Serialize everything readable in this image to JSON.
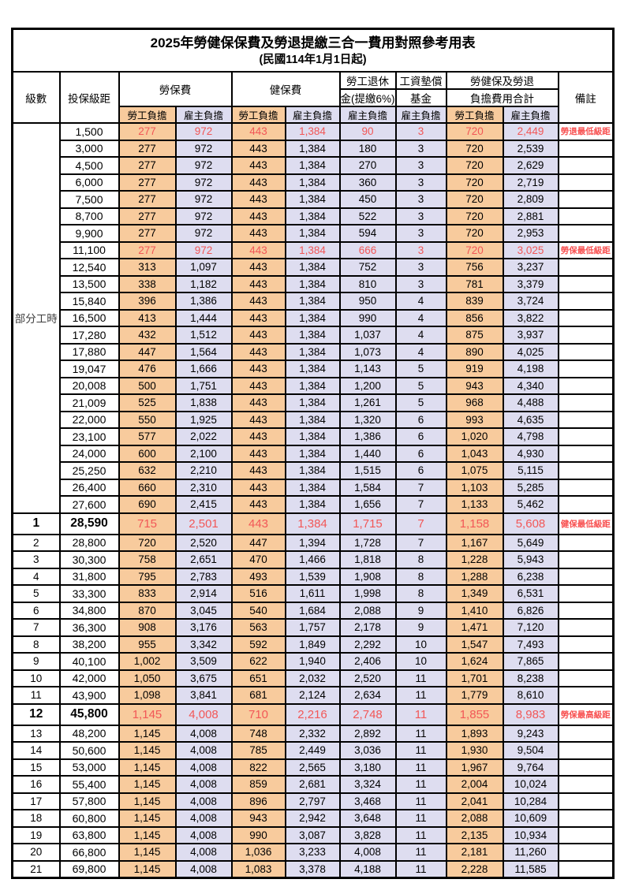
{
  "title": "2025年勞健保保費及勞退提繳三合一費用對照參考用表",
  "subtitle": "(民國114年1月1日起)",
  "colors": {
    "worker_share_bg": "#F8CB9D",
    "employer_share_bg": "#DEDDF0",
    "highlight_red": "#F25757",
    "border": "#000000"
  },
  "header": {
    "level": "級數",
    "salary_bracket": "投保級距",
    "labor_insurance": "勞保費",
    "health_insurance": "健保費",
    "pension_line1": "勞工退休",
    "pension_line2": "金(提繳6%)",
    "wage_fund_line1": "工資墊償",
    "wage_fund_line2": "基金",
    "total_line1": "勞健保及勞退",
    "total_line2": "負擔費用合計",
    "worker_share": "勞工負擔",
    "employer_share": "雇主負擔",
    "remarks": "備註"
  },
  "part_time_label": "部分工時",
  "part_time_rowspan": 23,
  "columns_legend": {
    "lv": "級數",
    "sal": "投保級距",
    "li_w": "勞保費-勞工負擔",
    "li_e": "勞保費-雇主負擔",
    "hi_w": "健保費-勞工負擔",
    "hi_e": "健保費-雇主負擔",
    "pen_e": "勞工退休金(提繳6%)-雇主負擔",
    "wf_e": "工資墊償基金-雇主負擔",
    "tot_w": "合計-勞工負擔",
    "tot_e": "合計-雇主負擔",
    "rem": "備註",
    "style": "normal | red | milestone"
  },
  "rows": [
    {
      "lv": "",
      "sal": "1,500",
      "li_w": "277",
      "li_e": "972",
      "hi_w": "443",
      "hi_e": "1,384",
      "pen_e": "90",
      "wf_e": "3",
      "tot_w": "720",
      "tot_e": "2,449",
      "rem": "勞退最低級距",
      "style": "red"
    },
    {
      "lv": "",
      "sal": "3,000",
      "li_w": "277",
      "li_e": "972",
      "hi_w": "443",
      "hi_e": "1,384",
      "pen_e": "180",
      "wf_e": "3",
      "tot_w": "720",
      "tot_e": "2,539",
      "rem": "",
      "style": ""
    },
    {
      "lv": "",
      "sal": "4,500",
      "li_w": "277",
      "li_e": "972",
      "hi_w": "443",
      "hi_e": "1,384",
      "pen_e": "270",
      "wf_e": "3",
      "tot_w": "720",
      "tot_e": "2,629",
      "rem": "",
      "style": ""
    },
    {
      "lv": "",
      "sal": "6,000",
      "li_w": "277",
      "li_e": "972",
      "hi_w": "443",
      "hi_e": "1,384",
      "pen_e": "360",
      "wf_e": "3",
      "tot_w": "720",
      "tot_e": "2,719",
      "rem": "",
      "style": ""
    },
    {
      "lv": "",
      "sal": "7,500",
      "li_w": "277",
      "li_e": "972",
      "hi_w": "443",
      "hi_e": "1,384",
      "pen_e": "450",
      "wf_e": "3",
      "tot_w": "720",
      "tot_e": "2,809",
      "rem": "",
      "style": ""
    },
    {
      "lv": "",
      "sal": "8,700",
      "li_w": "277",
      "li_e": "972",
      "hi_w": "443",
      "hi_e": "1,384",
      "pen_e": "522",
      "wf_e": "3",
      "tot_w": "720",
      "tot_e": "2,881",
      "rem": "",
      "style": ""
    },
    {
      "lv": "",
      "sal": "9,900",
      "li_w": "277",
      "li_e": "972",
      "hi_w": "443",
      "hi_e": "1,384",
      "pen_e": "594",
      "wf_e": "3",
      "tot_w": "720",
      "tot_e": "2,953",
      "rem": "",
      "style": ""
    },
    {
      "lv": "",
      "sal": "11,100",
      "li_w": "277",
      "li_e": "972",
      "hi_w": "443",
      "hi_e": "1,384",
      "pen_e": "666",
      "wf_e": "3",
      "tot_w": "720",
      "tot_e": "3,025",
      "rem": "勞保最低級距",
      "style": "red"
    },
    {
      "lv": "",
      "sal": "12,540",
      "li_w": "313",
      "li_e": "1,097",
      "hi_w": "443",
      "hi_e": "1,384",
      "pen_e": "752",
      "wf_e": "3",
      "tot_w": "756",
      "tot_e": "3,237",
      "rem": "",
      "style": ""
    },
    {
      "lv": "",
      "sal": "13,500",
      "li_w": "338",
      "li_e": "1,182",
      "hi_w": "443",
      "hi_e": "1,384",
      "pen_e": "810",
      "wf_e": "3",
      "tot_w": "781",
      "tot_e": "3,379",
      "rem": "",
      "style": ""
    },
    {
      "lv": "",
      "sal": "15,840",
      "li_w": "396",
      "li_e": "1,386",
      "hi_w": "443",
      "hi_e": "1,384",
      "pen_e": "950",
      "wf_e": "4",
      "tot_w": "839",
      "tot_e": "3,724",
      "rem": "",
      "style": ""
    },
    {
      "lv": "",
      "sal": "16,500",
      "li_w": "413",
      "li_e": "1,444",
      "hi_w": "443",
      "hi_e": "1,384",
      "pen_e": "990",
      "wf_e": "4",
      "tot_w": "856",
      "tot_e": "3,822",
      "rem": "",
      "style": ""
    },
    {
      "lv": "",
      "sal": "17,280",
      "li_w": "432",
      "li_e": "1,512",
      "hi_w": "443",
      "hi_e": "1,384",
      "pen_e": "1,037",
      "wf_e": "4",
      "tot_w": "875",
      "tot_e": "3,937",
      "rem": "",
      "style": ""
    },
    {
      "lv": "",
      "sal": "17,880",
      "li_w": "447",
      "li_e": "1,564",
      "hi_w": "443",
      "hi_e": "1,384",
      "pen_e": "1,073",
      "wf_e": "4",
      "tot_w": "890",
      "tot_e": "4,025",
      "rem": "",
      "style": ""
    },
    {
      "lv": "",
      "sal": "19,047",
      "li_w": "476",
      "li_e": "1,666",
      "hi_w": "443",
      "hi_e": "1,384",
      "pen_e": "1,143",
      "wf_e": "5",
      "tot_w": "919",
      "tot_e": "4,198",
      "rem": "",
      "style": ""
    },
    {
      "lv": "",
      "sal": "20,008",
      "li_w": "500",
      "li_e": "1,751",
      "hi_w": "443",
      "hi_e": "1,384",
      "pen_e": "1,200",
      "wf_e": "5",
      "tot_w": "943",
      "tot_e": "4,340",
      "rem": "",
      "style": ""
    },
    {
      "lv": "",
      "sal": "21,009",
      "li_w": "525",
      "li_e": "1,838",
      "hi_w": "443",
      "hi_e": "1,384",
      "pen_e": "1,261",
      "wf_e": "5",
      "tot_w": "968",
      "tot_e": "4,488",
      "rem": "",
      "style": ""
    },
    {
      "lv": "",
      "sal": "22,000",
      "li_w": "550",
      "li_e": "1,925",
      "hi_w": "443",
      "hi_e": "1,384",
      "pen_e": "1,320",
      "wf_e": "6",
      "tot_w": "993",
      "tot_e": "4,635",
      "rem": "",
      "style": ""
    },
    {
      "lv": "",
      "sal": "23,100",
      "li_w": "577",
      "li_e": "2,022",
      "hi_w": "443",
      "hi_e": "1,384",
      "pen_e": "1,386",
      "wf_e": "6",
      "tot_w": "1,020",
      "tot_e": "4,798",
      "rem": "",
      "style": ""
    },
    {
      "lv": "",
      "sal": "24,000",
      "li_w": "600",
      "li_e": "2,100",
      "hi_w": "443",
      "hi_e": "1,384",
      "pen_e": "1,440",
      "wf_e": "6",
      "tot_w": "1,043",
      "tot_e": "4,930",
      "rem": "",
      "style": ""
    },
    {
      "lv": "",
      "sal": "25,250",
      "li_w": "632",
      "li_e": "2,210",
      "hi_w": "443",
      "hi_e": "1,384",
      "pen_e": "1,515",
      "wf_e": "6",
      "tot_w": "1,075",
      "tot_e": "5,115",
      "rem": "",
      "style": ""
    },
    {
      "lv": "",
      "sal": "26,400",
      "li_w": "660",
      "li_e": "2,310",
      "hi_w": "443",
      "hi_e": "1,384",
      "pen_e": "1,584",
      "wf_e": "7",
      "tot_w": "1,103",
      "tot_e": "5,285",
      "rem": "",
      "style": ""
    },
    {
      "lv": "",
      "sal": "27,600",
      "li_w": "690",
      "li_e": "2,415",
      "hi_w": "443",
      "hi_e": "1,384",
      "pen_e": "1,656",
      "wf_e": "7",
      "tot_w": "1,133",
      "tot_e": "5,462",
      "rem": "",
      "style": ""
    },
    {
      "lv": "1",
      "sal": "28,590",
      "li_w": "715",
      "li_e": "2,501",
      "hi_w": "443",
      "hi_e": "1,384",
      "pen_e": "1,715",
      "wf_e": "7",
      "tot_w": "1,158",
      "tot_e": "5,608",
      "rem": "健保最低級距",
      "style": "milestone"
    },
    {
      "lv": "2",
      "sal": "28,800",
      "li_w": "720",
      "li_e": "2,520",
      "hi_w": "447",
      "hi_e": "1,394",
      "pen_e": "1,728",
      "wf_e": "7",
      "tot_w": "1,167",
      "tot_e": "5,649",
      "rem": "",
      "style": ""
    },
    {
      "lv": "3",
      "sal": "30,300",
      "li_w": "758",
      "li_e": "2,651",
      "hi_w": "470",
      "hi_e": "1,466",
      "pen_e": "1,818",
      "wf_e": "8",
      "tot_w": "1,228",
      "tot_e": "5,943",
      "rem": "",
      "style": ""
    },
    {
      "lv": "4",
      "sal": "31,800",
      "li_w": "795",
      "li_e": "2,783",
      "hi_w": "493",
      "hi_e": "1,539",
      "pen_e": "1,908",
      "wf_e": "8",
      "tot_w": "1,288",
      "tot_e": "6,238",
      "rem": "",
      "style": ""
    },
    {
      "lv": "5",
      "sal": "33,300",
      "li_w": "833",
      "li_e": "2,914",
      "hi_w": "516",
      "hi_e": "1,611",
      "pen_e": "1,998",
      "wf_e": "8",
      "tot_w": "1,349",
      "tot_e": "6,531",
      "rem": "",
      "style": ""
    },
    {
      "lv": "6",
      "sal": "34,800",
      "li_w": "870",
      "li_e": "3,045",
      "hi_w": "540",
      "hi_e": "1,684",
      "pen_e": "2,088",
      "wf_e": "9",
      "tot_w": "1,410",
      "tot_e": "6,826",
      "rem": "",
      "style": ""
    },
    {
      "lv": "7",
      "sal": "36,300",
      "li_w": "908",
      "li_e": "3,176",
      "hi_w": "563",
      "hi_e": "1,757",
      "pen_e": "2,178",
      "wf_e": "9",
      "tot_w": "1,471",
      "tot_e": "7,120",
      "rem": "",
      "style": ""
    },
    {
      "lv": "8",
      "sal": "38,200",
      "li_w": "955",
      "li_e": "3,342",
      "hi_w": "592",
      "hi_e": "1,849",
      "pen_e": "2,292",
      "wf_e": "10",
      "tot_w": "1,547",
      "tot_e": "7,493",
      "rem": "",
      "style": ""
    },
    {
      "lv": "9",
      "sal": "40,100",
      "li_w": "1,002",
      "li_e": "3,509",
      "hi_w": "622",
      "hi_e": "1,940",
      "pen_e": "2,406",
      "wf_e": "10",
      "tot_w": "1,624",
      "tot_e": "7,865",
      "rem": "",
      "style": ""
    },
    {
      "lv": "10",
      "sal": "42,000",
      "li_w": "1,050",
      "li_e": "3,675",
      "hi_w": "651",
      "hi_e": "2,032",
      "pen_e": "2,520",
      "wf_e": "11",
      "tot_w": "1,701",
      "tot_e": "8,238",
      "rem": "",
      "style": ""
    },
    {
      "lv": "11",
      "sal": "43,900",
      "li_w": "1,098",
      "li_e": "3,841",
      "hi_w": "681",
      "hi_e": "2,124",
      "pen_e": "2,634",
      "wf_e": "11",
      "tot_w": "1,779",
      "tot_e": "8,610",
      "rem": "",
      "style": ""
    },
    {
      "lv": "12",
      "sal": "45,800",
      "li_w": "1,145",
      "li_e": "4,008",
      "hi_w": "710",
      "hi_e": "2,216",
      "pen_e": "2,748",
      "wf_e": "11",
      "tot_w": "1,855",
      "tot_e": "8,983",
      "rem": "勞保最高級距",
      "style": "milestone"
    },
    {
      "lv": "13",
      "sal": "48,200",
      "li_w": "1,145",
      "li_e": "4,008",
      "hi_w": "748",
      "hi_e": "2,332",
      "pen_e": "2,892",
      "wf_e": "11",
      "tot_w": "1,893",
      "tot_e": "9,243",
      "rem": "",
      "style": ""
    },
    {
      "lv": "14",
      "sal": "50,600",
      "li_w": "1,145",
      "li_e": "4,008",
      "hi_w": "785",
      "hi_e": "2,449",
      "pen_e": "3,036",
      "wf_e": "11",
      "tot_w": "1,930",
      "tot_e": "9,504",
      "rem": "",
      "style": ""
    },
    {
      "lv": "15",
      "sal": "53,000",
      "li_w": "1,145",
      "li_e": "4,008",
      "hi_w": "822",
      "hi_e": "2,565",
      "pen_e": "3,180",
      "wf_e": "11",
      "tot_w": "1,967",
      "tot_e": "9,764",
      "rem": "",
      "style": ""
    },
    {
      "lv": "16",
      "sal": "55,400",
      "li_w": "1,145",
      "li_e": "4,008",
      "hi_w": "859",
      "hi_e": "2,681",
      "pen_e": "3,324",
      "wf_e": "11",
      "tot_w": "2,004",
      "tot_e": "10,024",
      "rem": "",
      "style": ""
    },
    {
      "lv": "17",
      "sal": "57,800",
      "li_w": "1,145",
      "li_e": "4,008",
      "hi_w": "896",
      "hi_e": "2,797",
      "pen_e": "3,468",
      "wf_e": "11",
      "tot_w": "2,041",
      "tot_e": "10,284",
      "rem": "",
      "style": ""
    },
    {
      "lv": "18",
      "sal": "60,800",
      "li_w": "1,145",
      "li_e": "4,008",
      "hi_w": "943",
      "hi_e": "2,942",
      "pen_e": "3,648",
      "wf_e": "11",
      "tot_w": "2,088",
      "tot_e": "10,609",
      "rem": "",
      "style": ""
    },
    {
      "lv": "19",
      "sal": "63,800",
      "li_w": "1,145",
      "li_e": "4,008",
      "hi_w": "990",
      "hi_e": "3,087",
      "pen_e": "3,828",
      "wf_e": "11",
      "tot_w": "2,135",
      "tot_e": "10,934",
      "rem": "",
      "style": ""
    },
    {
      "lv": "20",
      "sal": "66,800",
      "li_w": "1,145",
      "li_e": "4,008",
      "hi_w": "1,036",
      "hi_e": "3,233",
      "pen_e": "4,008",
      "wf_e": "11",
      "tot_w": "2,181",
      "tot_e": "11,260",
      "rem": "",
      "style": ""
    },
    {
      "lv": "21",
      "sal": "69,800",
      "li_w": "1,145",
      "li_e": "4,008",
      "hi_w": "1,083",
      "hi_e": "3,378",
      "pen_e": "4,188",
      "wf_e": "11",
      "tot_w": "2,228",
      "tot_e": "11,585",
      "rem": "",
      "style": ""
    }
  ]
}
